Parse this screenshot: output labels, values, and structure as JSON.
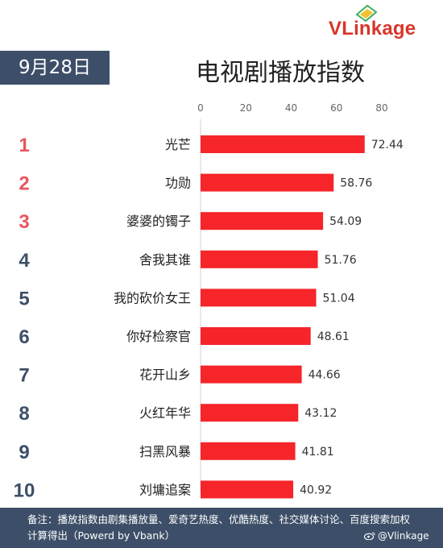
{
  "brand": {
    "logo_text": "VLinkage"
  },
  "header": {
    "date": "9月28日",
    "title": "电视剧播放指数"
  },
  "footer": {
    "note": "备注：播放指数由剧集播放量、爱奇艺热度、优酷热度、社交媒体讨论、百度搜索加权计算得出（Powerd by Vbank）",
    "weibo": "@Vlinkage"
  },
  "colors": {
    "bar": "#f5252a",
    "rank_top3": "#e8565f",
    "rank_rest": "#3d4f68",
    "banner": "#3d4f68"
  },
  "chart_data": {
    "type": "bar",
    "orientation": "horizontal",
    "title": "电视剧播放指数",
    "xlim": [
      0,
      80
    ],
    "xticks": [
      0,
      20,
      40,
      60,
      80
    ],
    "grid": false,
    "categories": [
      "光芒",
      "功勋",
      "婆婆的镯子",
      "舍我其谁",
      "我的砍价女王",
      "你好检察官",
      "花开山乡",
      "火红年华",
      "扫黑风暴",
      "刘墉追案"
    ],
    "ranks": [
      "1",
      "2",
      "3",
      "4",
      "5",
      "6",
      "7",
      "8",
      "9",
      "10"
    ],
    "values": [
      72.44,
      58.76,
      54.09,
      51.76,
      51.04,
      48.61,
      44.66,
      43.12,
      41.81,
      40.92
    ],
    "value_labels": [
      "72.44",
      "58.76",
      "54.09",
      "51.76",
      "51.04",
      "48.61",
      "44.66",
      "43.12",
      "41.81",
      "40.92"
    ]
  }
}
